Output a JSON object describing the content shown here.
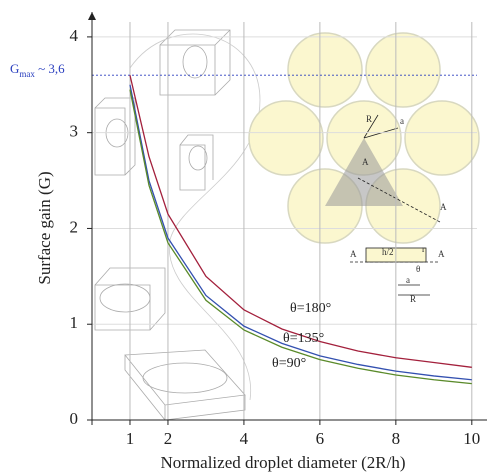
{
  "chart_data": {
    "type": "line",
    "xlabel": "Normalized droplet diameter (2R/h)",
    "ylabel": "Surface gain (G)",
    "x": [
      1,
      1.5,
      2,
      3,
      4,
      5,
      6,
      7,
      8,
      9,
      10
    ],
    "series": [
      {
        "name": "θ=180°",
        "color": "#a3203c",
        "values": [
          3.6,
          2.75,
          2.15,
          1.5,
          1.15,
          0.95,
          0.82,
          0.72,
          0.65,
          0.6,
          0.55
        ]
      },
      {
        "name": "θ=135°",
        "color": "#3350b0",
        "values": [
          3.5,
          2.5,
          1.9,
          1.3,
          0.98,
          0.8,
          0.67,
          0.58,
          0.51,
          0.46,
          0.42
        ]
      },
      {
        "name": "θ=90°",
        "color": "#5a8a2a",
        "values": [
          3.45,
          2.45,
          1.85,
          1.25,
          0.94,
          0.76,
          0.63,
          0.54,
          0.47,
          0.42,
          0.38
        ]
      }
    ],
    "xlim": [
      0,
      10.4
    ],
    "ylim": [
      0,
      4.26
    ],
    "xticks": [
      1,
      2,
      4,
      6,
      8,
      10
    ],
    "yticks": [
      0,
      1,
      2,
      3,
      4
    ],
    "grid": true,
    "annotation": {
      "symbol": "G",
      "subscript": "max",
      "text": " ~ 3,6",
      "value": 3.6,
      "color": "#2a3fbf"
    },
    "inset_labels": [
      "R",
      "a",
      "A",
      "A",
      "A",
      "h/2",
      "r",
      "A",
      "θ",
      "a",
      "R"
    ]
  }
}
